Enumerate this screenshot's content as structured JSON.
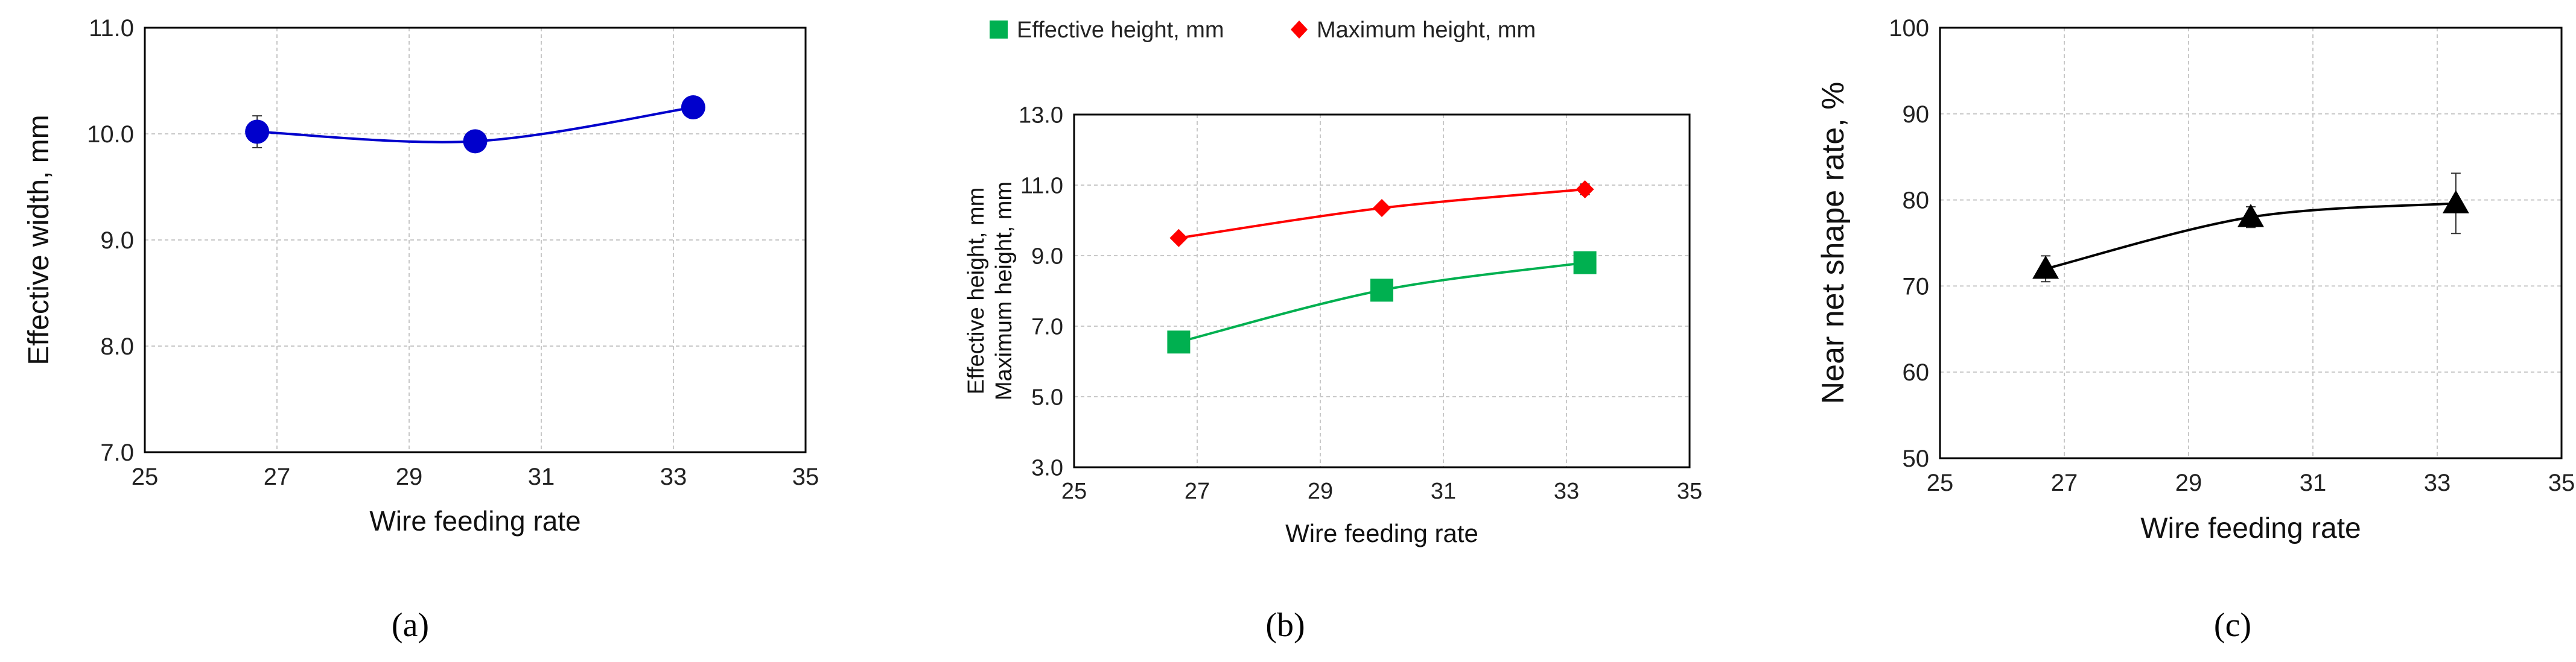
{
  "panels": [
    {
      "caption": "(a)",
      "chart_data": {
        "type": "scatter",
        "title": "",
        "xlabel": "Wire feeding rate",
        "ylabel": "Effective width, mm",
        "xlim": [
          25,
          35
        ],
        "ylim": [
          7.0,
          11.0
        ],
        "xticks": [
          "25",
          "27",
          "29",
          "31",
          "33",
          "35"
        ],
        "yticks": [
          "7.0",
          "8.0",
          "9.0",
          "10.0",
          "11.0"
        ],
        "grid": true,
        "series": [
          {
            "name": "Effective width, mm",
            "color": "#0000cc",
            "marker": "circle",
            "x": [
              26.7,
              30.0,
              33.3
            ],
            "y": [
              10.02,
              9.93,
              10.25
            ],
            "err": [
              0.15,
              0.05,
              0.06
            ]
          }
        ]
      }
    },
    {
      "caption": "(b)",
      "chart_data": {
        "type": "line",
        "title": "",
        "xlabel": "Wire feeding rate",
        "ylabel_lines": [
          "Effective height, mm",
          "Maximum height, mm"
        ],
        "xlim": [
          25,
          35
        ],
        "ylim": [
          3.0,
          13.0
        ],
        "xticks": [
          "25",
          "27",
          "29",
          "31",
          "33",
          "35"
        ],
        "yticks": [
          "3.0",
          "5.0",
          "7.0",
          "9.0",
          "11.0",
          "13.0"
        ],
        "grid": true,
        "legend": "top",
        "series": [
          {
            "name": "Effective height, mm",
            "color": "#00b050",
            "marker": "square",
            "x": [
              26.7,
              30.0,
              33.3
            ],
            "y": [
              6.55,
              8.02,
              8.8
            ],
            "err": [
              0.1,
              0.1,
              0.2
            ]
          },
          {
            "name": "Maximum height, mm",
            "color": "#ff0000",
            "marker": "diamond",
            "x": [
              26.7,
              30.0,
              33.3
            ],
            "y": [
              9.5,
              10.35,
              10.88
            ],
            "err": [
              0.05,
              0.05,
              0.15
            ]
          }
        ]
      }
    },
    {
      "caption": "(c)",
      "chart_data": {
        "type": "scatter",
        "title": "",
        "xlabel": "Wire feeding rate",
        "ylabel": "Near net shape rate, %",
        "xlim": [
          25,
          35
        ],
        "ylim": [
          50,
          100
        ],
        "xticks": [
          "25",
          "27",
          "29",
          "31",
          "33",
          "35"
        ],
        "yticks": [
          "50",
          "60",
          "70",
          "80",
          "90",
          "100"
        ],
        "grid": true,
        "series": [
          {
            "name": "Near net shape rate, %",
            "color": "#000000",
            "marker": "triangle",
            "x": [
              26.7,
              30.0,
              33.3
            ],
            "y": [
              72.0,
              78.0,
              79.6
            ],
            "err": [
              1.5,
              1.2,
              3.5
            ]
          }
        ]
      }
    }
  ]
}
